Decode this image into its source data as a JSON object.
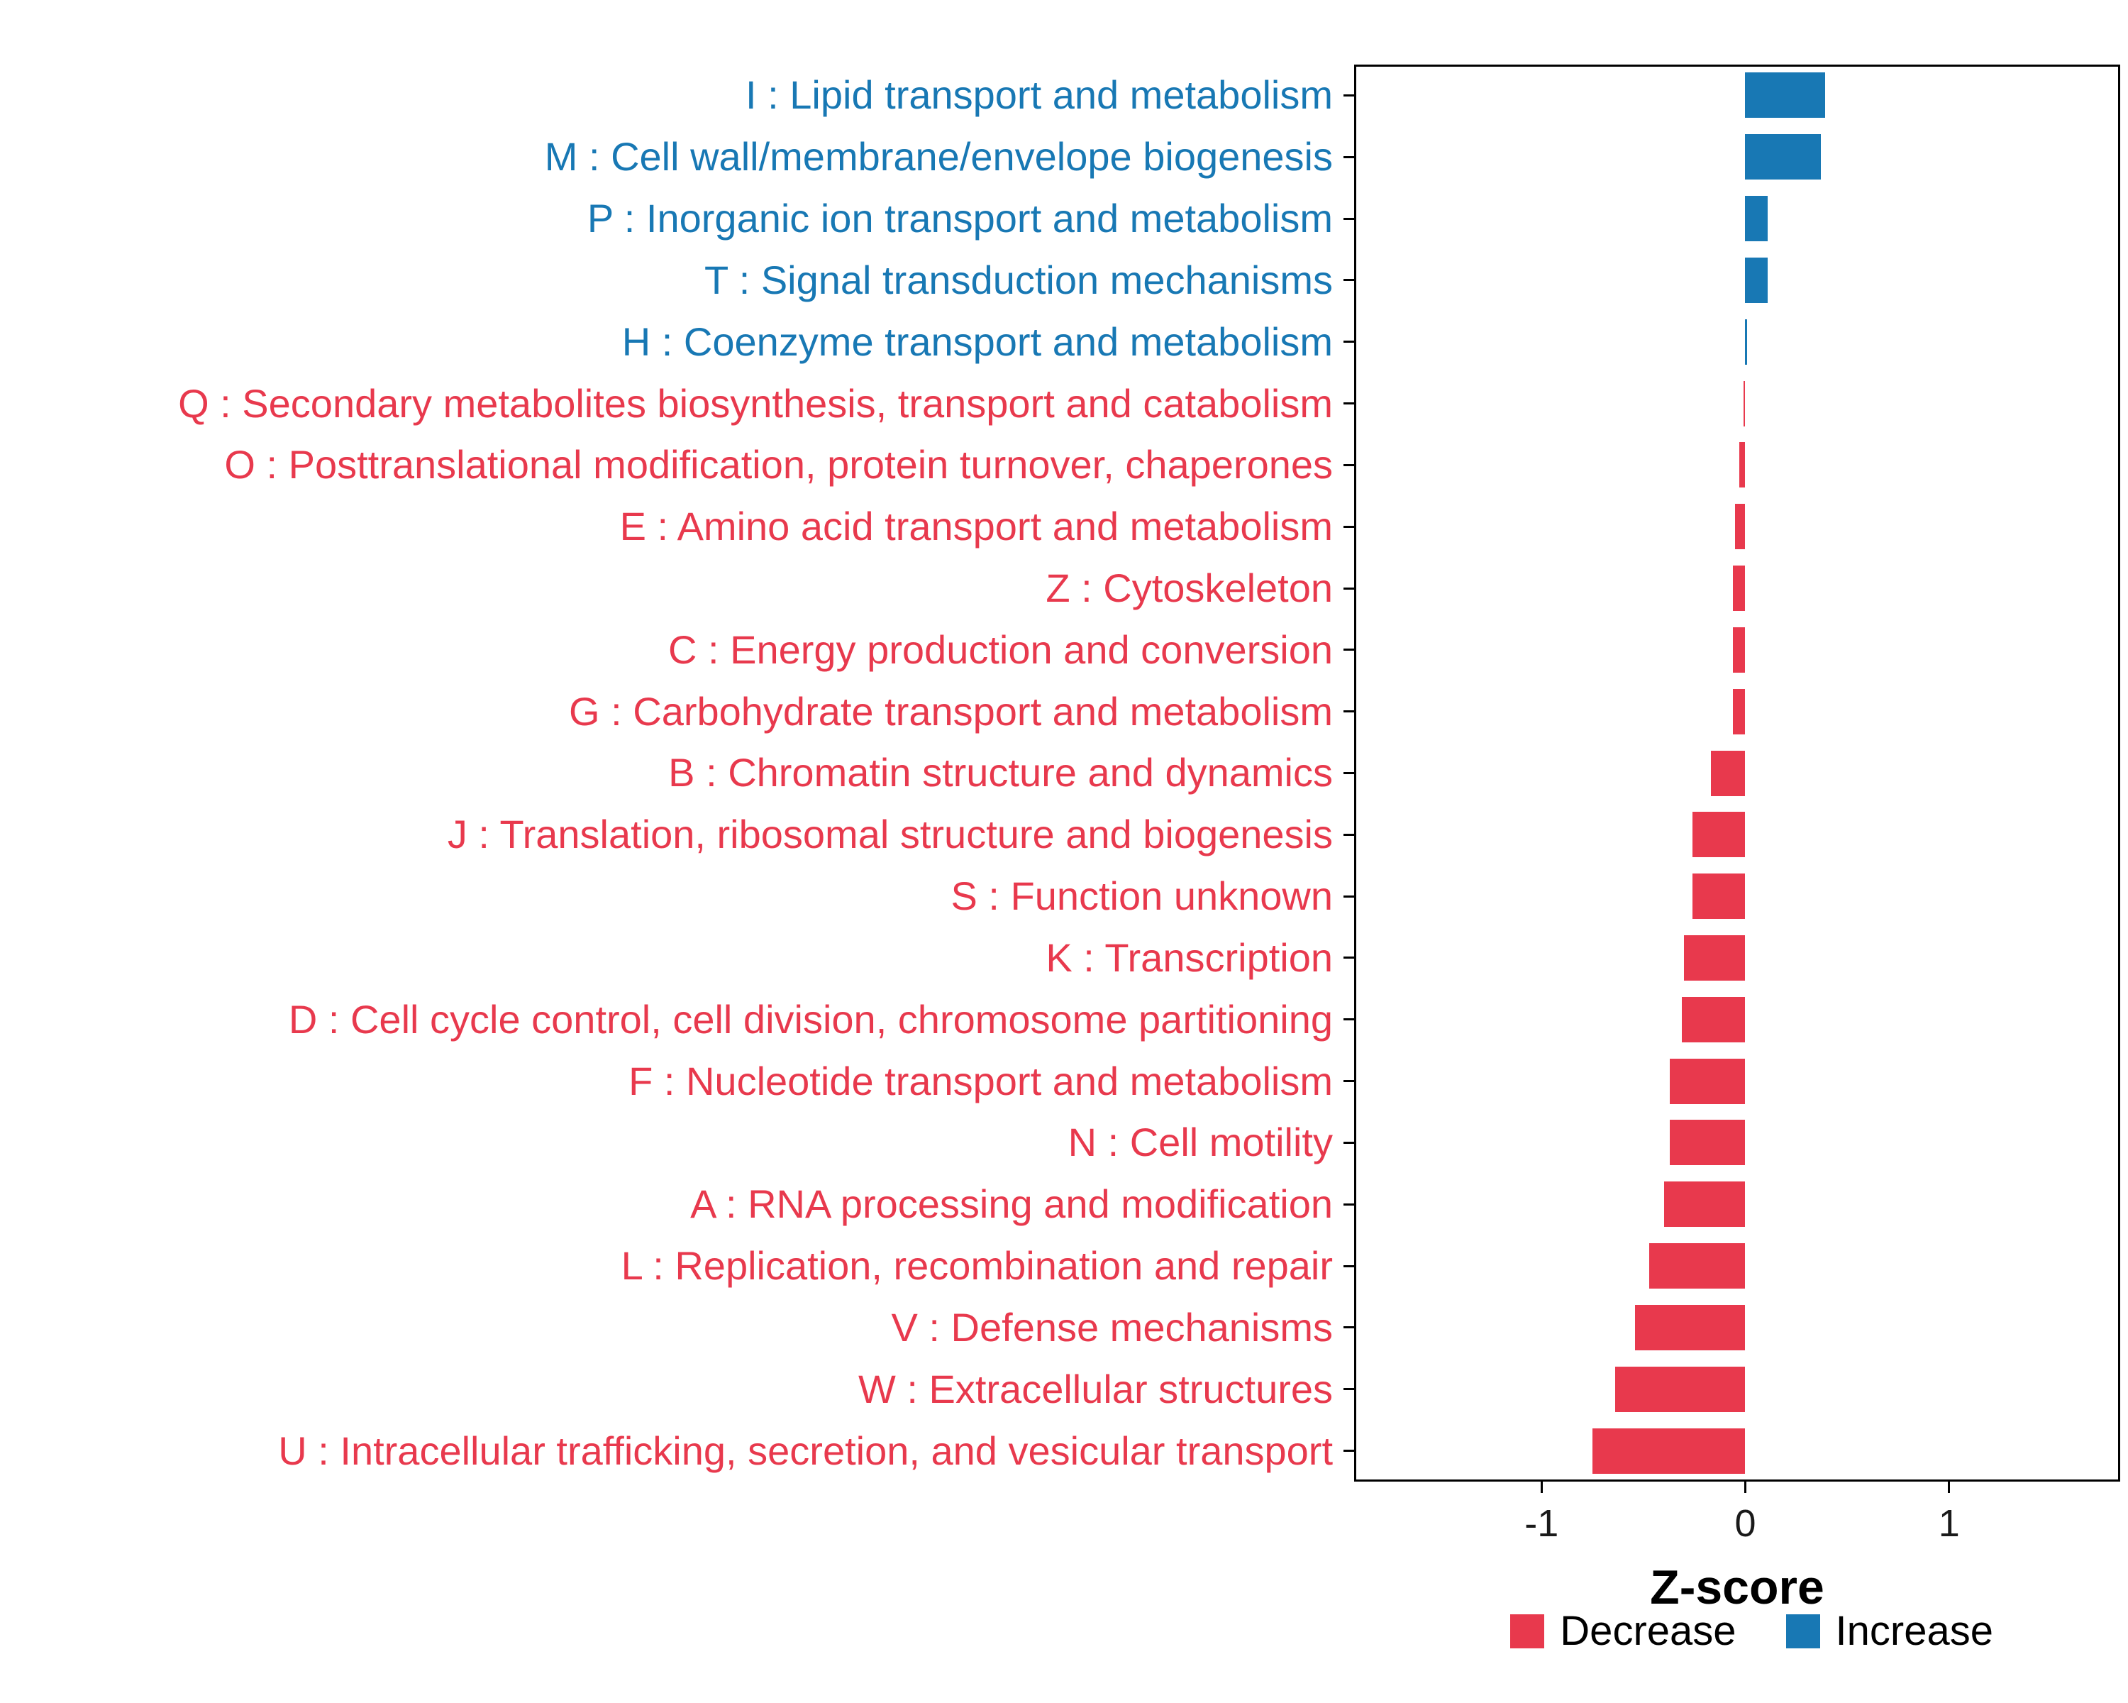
{
  "chart_data": {
    "type": "bar",
    "orientation": "horizontal",
    "title": "",
    "xlabel": "Z-score",
    "ylabel": "",
    "xlim": [
      -1.92,
      1.84
    ],
    "xticks": [
      -1,
      0,
      1
    ],
    "xtick_labels": [
      "-1",
      "0",
      "1"
    ],
    "grid": false,
    "legend_position": "bottom-right",
    "colors": {
      "Decrease": "#E8394D",
      "Increase": "#1878B4"
    },
    "legend_entries": [
      {
        "label": "Decrease",
        "group": "Decrease"
      },
      {
        "label": "Increase",
        "group": "Increase"
      }
    ],
    "categories": [
      {
        "label": "I : Lipid transport and metabolism",
        "value": 0.39,
        "group": "Increase"
      },
      {
        "label": "M : Cell wall/membrane/envelope biogenesis",
        "value": 0.37,
        "group": "Increase"
      },
      {
        "label": "P : Inorganic ion transport and metabolism",
        "value": 0.11,
        "group": "Increase"
      },
      {
        "label": "T : Signal transduction mechanisms",
        "value": 0.11,
        "group": "Increase"
      },
      {
        "label": "H : Coenzyme transport and metabolism",
        "value": 0.01,
        "group": "Increase"
      },
      {
        "label": "Q : Secondary metabolites biosynthesis, transport and catabolism",
        "value": -0.01,
        "group": "Decrease"
      },
      {
        "label": "O : Posttranslational modification, protein turnover, chaperones",
        "value": -0.03,
        "group": "Decrease"
      },
      {
        "label": "E : Amino acid transport and metabolism",
        "value": -0.05,
        "group": "Decrease"
      },
      {
        "label": "Z : Cytoskeleton",
        "value": -0.06,
        "group": "Decrease"
      },
      {
        "label": "C : Energy production and conversion",
        "value": -0.06,
        "group": "Decrease"
      },
      {
        "label": "G : Carbohydrate transport and metabolism",
        "value": -0.06,
        "group": "Decrease"
      },
      {
        "label": "B : Chromatin structure and dynamics",
        "value": -0.17,
        "group": "Decrease"
      },
      {
        "label": "J : Translation, ribosomal structure and biogenesis",
        "value": -0.26,
        "group": "Decrease"
      },
      {
        "label": "S : Function unknown",
        "value": -0.26,
        "group": "Decrease"
      },
      {
        "label": "K : Transcription",
        "value": -0.3,
        "group": "Decrease"
      },
      {
        "label": "D : Cell cycle control, cell division, chromosome partitioning",
        "value": -0.31,
        "group": "Decrease"
      },
      {
        "label": "F : Nucleotide transport and metabolism",
        "value": -0.37,
        "group": "Decrease"
      },
      {
        "label": "N : Cell motility",
        "value": -0.37,
        "group": "Decrease"
      },
      {
        "label": "A : RNA processing and modification",
        "value": -0.4,
        "group": "Decrease"
      },
      {
        "label": "L : Replication, recombination and repair",
        "value": -0.47,
        "group": "Decrease"
      },
      {
        "label": "V : Defense mechanisms",
        "value": -0.54,
        "group": "Decrease"
      },
      {
        "label": "W : Extracellular structures",
        "value": -0.64,
        "group": "Decrease"
      },
      {
        "label": "U : Intracellular trafficking, secretion, and vesicular transport",
        "value": -0.75,
        "group": "Decrease"
      }
    ]
  }
}
